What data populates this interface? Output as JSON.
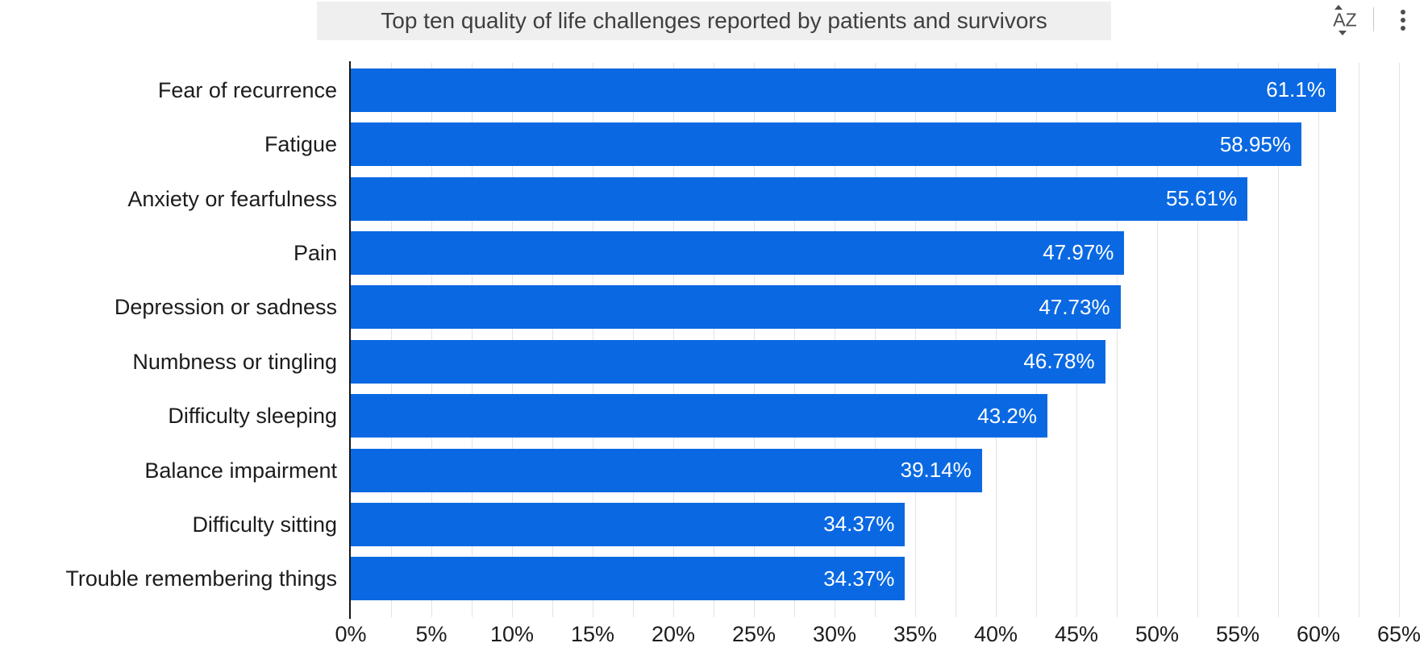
{
  "header": {
    "title": "Top ten quality of life challenges reported by patients and survivors",
    "toolbar": {
      "sort_label": "AZ",
      "sort_tooltip": "Sort",
      "menu_tooltip": "Menu"
    }
  },
  "chart_data": {
    "type": "bar",
    "orientation": "horizontal",
    "title": "Top ten quality of life challenges reported by patients and survivors",
    "xlabel": "",
    "ylabel": "",
    "categories": [
      "Fear of recurrence",
      "Fatigue",
      "Anxiety or fearfulness",
      "Pain",
      "Depression or sadness",
      "Numbness or tingling",
      "Difficulty sleeping",
      "Balance impairment",
      "Difficulty sitting",
      "Trouble remembering things"
    ],
    "values": [
      61.1,
      58.95,
      55.61,
      47.97,
      47.73,
      46.78,
      43.2,
      39.14,
      34.37,
      34.37
    ],
    "value_labels": [
      "61.1%",
      "58.95%",
      "55.61%",
      "47.97%",
      "47.73%",
      "46.78%",
      "43.2%",
      "39.14%",
      "34.37%",
      "34.37%"
    ],
    "xlim": [
      0,
      65
    ],
    "x_tick_values": [
      0,
      5,
      10,
      15,
      20,
      25,
      30,
      35,
      40,
      45,
      50,
      55,
      60,
      65
    ],
    "x_tick_labels": [
      "0%",
      "5%",
      "10%",
      "15%",
      "20%",
      "25%",
      "30%",
      "35%",
      "40%",
      "45%",
      "50%",
      "55%",
      "60%",
      "65%"
    ],
    "grid": "vertical",
    "grid_step": 2.5,
    "legend": "none"
  },
  "colors": {
    "bar": "#0a69e2",
    "bar_value_text": "#ffffff",
    "gridline": "#e3e3e3",
    "axis_line": "#161616",
    "label_text": "#1c1c1c",
    "title_bg": "#efefef",
    "title_text": "#3f3f3f",
    "icon": "#4f4f4f",
    "background": "#ffffff"
  }
}
